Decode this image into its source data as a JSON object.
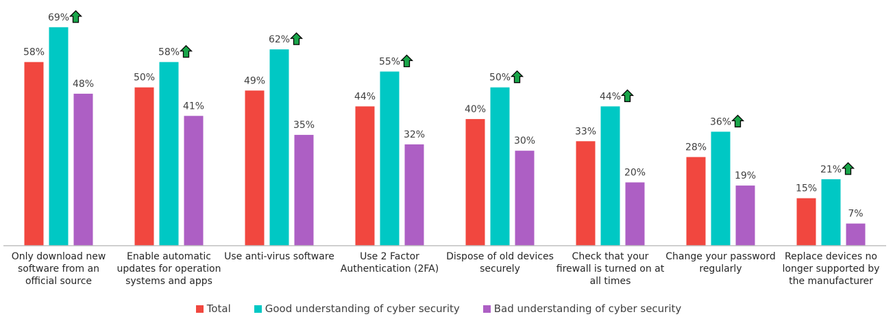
{
  "chart_data": {
    "type": "bar",
    "categories": [
      "Only download new software from an official source",
      "Enable automatic updates for operation systems and apps",
      "Use anti-virus software",
      "Use 2 Factor Authentication (2FA)",
      "Dispose of old devices securely",
      "Check that your firewall is turned on at all times",
      "Change your password regularly",
      "Replace devices no longer supported by the manufacturer"
    ],
    "series": [
      {
        "name": "Total",
        "color": "#f1473f",
        "values": [
          58,
          50,
          49,
          44,
          40,
          33,
          28,
          15
        ],
        "value_labels": [
          "58%",
          "50%",
          "49%",
          "44%",
          "40%",
          "33%",
          "28%",
          "15%"
        ]
      },
      {
        "name": "Good understanding of cyber security",
        "color": "#00c8c4",
        "values": [
          69,
          58,
          62,
          55,
          50,
          44,
          36,
          21
        ],
        "value_labels": [
          "69%",
          "58%",
          "62%",
          "55%",
          "50%",
          "44%",
          "36%",
          "21%"
        ]
      },
      {
        "name": "Bad understanding of cyber security",
        "color": "#ad5fc4",
        "values": [
          48,
          41,
          35,
          32,
          30,
          20,
          19,
          7
        ],
        "value_labels": [
          "48%",
          "41%",
          "35%",
          "32%",
          "30%",
          "20%",
          "19%",
          "7%"
        ]
      }
    ],
    "ylim": [
      0,
      75
    ]
  }
}
